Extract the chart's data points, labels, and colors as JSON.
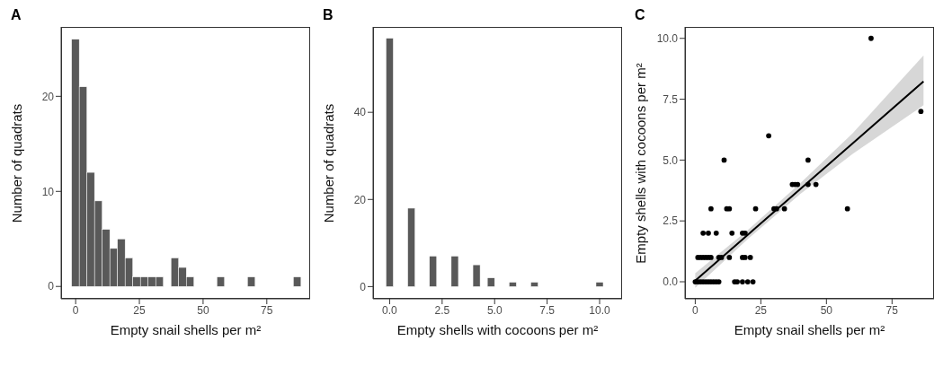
{
  "chart_data": [
    {
      "type": "histogram",
      "title": "A",
      "xlabel": "Empty snail shells per m²",
      "ylabel": "Number of quadrats",
      "bins": [
        -1.5,
        1.5,
        4.5,
        7.5,
        10.5,
        13.5,
        16.5,
        19.5,
        22.5,
        25.5,
        28.5,
        31.5,
        34.5,
        37.5,
        40.5,
        43.5,
        46.5,
        49.5,
        52.5,
        55.5,
        58.5,
        61.5,
        64.5,
        67.5,
        70.5,
        73.5,
        76.5,
        79.5,
        82.5,
        85.5,
        88.5
      ],
      "values": [
        26,
        21,
        12,
        9,
        6,
        4,
        5,
        3,
        1,
        1,
        1,
        1,
        0,
        3,
        2,
        1,
        0,
        0,
        0,
        1,
        0,
        0,
        0,
        1,
        0,
        0,
        0,
        0,
        0,
        1
      ],
      "color": "#595959",
      "xlim": [
        -5.7,
        92
      ],
      "xticks": [
        0,
        25,
        50,
        75
      ],
      "ylim": [
        -1.3,
        27.3
      ],
      "yticks": [
        0,
        10,
        20
      ],
      "grid": false,
      "legend": false
    },
    {
      "type": "histogram",
      "title": "B",
      "xlabel": "Empty shells with cocoons per m²",
      "ylabel": "Number of quadrats",
      "bins": [
        -0.172,
        0.172,
        0.517,
        0.862,
        1.207,
        1.552,
        1.897,
        2.241,
        2.586,
        2.931,
        3.276,
        3.621,
        3.966,
        4.31,
        4.655,
        5.0,
        5.345,
        5.69,
        6.034,
        6.379,
        6.724,
        7.069,
        7.414,
        7.759,
        8.103,
        8.448,
        8.793,
        9.138,
        9.483,
        9.828,
        10.172
      ],
      "values": [
        57,
        0,
        0,
        18,
        0,
        0,
        7,
        0,
        0,
        7,
        0,
        0,
        5,
        0,
        2,
        0,
        0,
        1,
        0,
        0,
        1,
        0,
        0,
        0,
        0,
        0,
        0,
        0,
        0,
        1
      ],
      "color": "#595959",
      "xlim": [
        -0.79,
        11.07
      ],
      "xticks": [
        {
          "value": 0,
          "label": "0.0"
        },
        {
          "value": 2.5,
          "label": "2.5"
        },
        {
          "value": 5,
          "label": "5.0"
        },
        {
          "value": 7.5,
          "label": "7.5"
        },
        {
          "value": 10,
          "label": "10.0"
        }
      ],
      "ylim": [
        -2.8,
        59.6
      ],
      "yticks": [
        0,
        20,
        40
      ],
      "grid": false,
      "legend": false
    },
    {
      "type": "scatter",
      "title": "C",
      "xlabel": "Empty snail shells per m²",
      "ylabel": "Empty shells with cocoons per m²",
      "grid": false,
      "legend": false,
      "xlim": [
        -3.9,
        91
      ],
      "xticks": [
        0,
        25,
        50,
        75
      ],
      "ylim": [
        -0.7,
        10.47
      ],
      "yticks": [
        {
          "value": 0,
          "label": "0.0"
        },
        {
          "value": 2.5,
          "label": "2.5"
        },
        {
          "value": 5,
          "label": "5.0"
        },
        {
          "value": 7.5,
          "label": "7.5"
        },
        {
          "value": 10,
          "label": "10.0"
        }
      ],
      "series": [
        {
          "type": "scatter",
          "marker": "circle",
          "color": "#000000",
          "x": [
            67,
            86,
            28,
            11,
            43,
            37,
            38,
            39,
            43,
            46,
            6,
            12,
            13,
            23,
            30,
            31,
            34,
            58,
            3,
            5,
            8,
            14,
            18,
            19,
            1,
            2,
            3,
            4,
            5,
            6,
            9,
            10,
            13,
            18,
            19,
            21,
            0,
            1,
            2,
            3,
            4,
            5,
            6,
            7,
            8,
            9,
            15,
            16,
            18,
            20,
            22
          ],
          "values": [
            10,
            7,
            6,
            5,
            5,
            4,
            4,
            4,
            4,
            4,
            3,
            3,
            3,
            3,
            3,
            3,
            3,
            3,
            2,
            2,
            2,
            2,
            2,
            2,
            1,
            1,
            1,
            1,
            1,
            1,
            1,
            1,
            1,
            1,
            1,
            1,
            0,
            0,
            0,
            0,
            0,
            0,
            0,
            0,
            0,
            0,
            0,
            0,
            0,
            0,
            0
          ]
        },
        {
          "type": "line",
          "marker": "none",
          "color": "#000000",
          "x": [
            0,
            20,
            40,
            60,
            87
          ],
          "values": [
            0.05,
            1.93,
            3.81,
            5.69,
            8.23
          ],
          "lower": [
            -0.25,
            1.75,
            3.6,
            5.25,
            7.25
          ],
          "upper": [
            0.35,
            2.12,
            4.05,
            6.1,
            9.3
          ]
        }
      ]
    }
  ]
}
